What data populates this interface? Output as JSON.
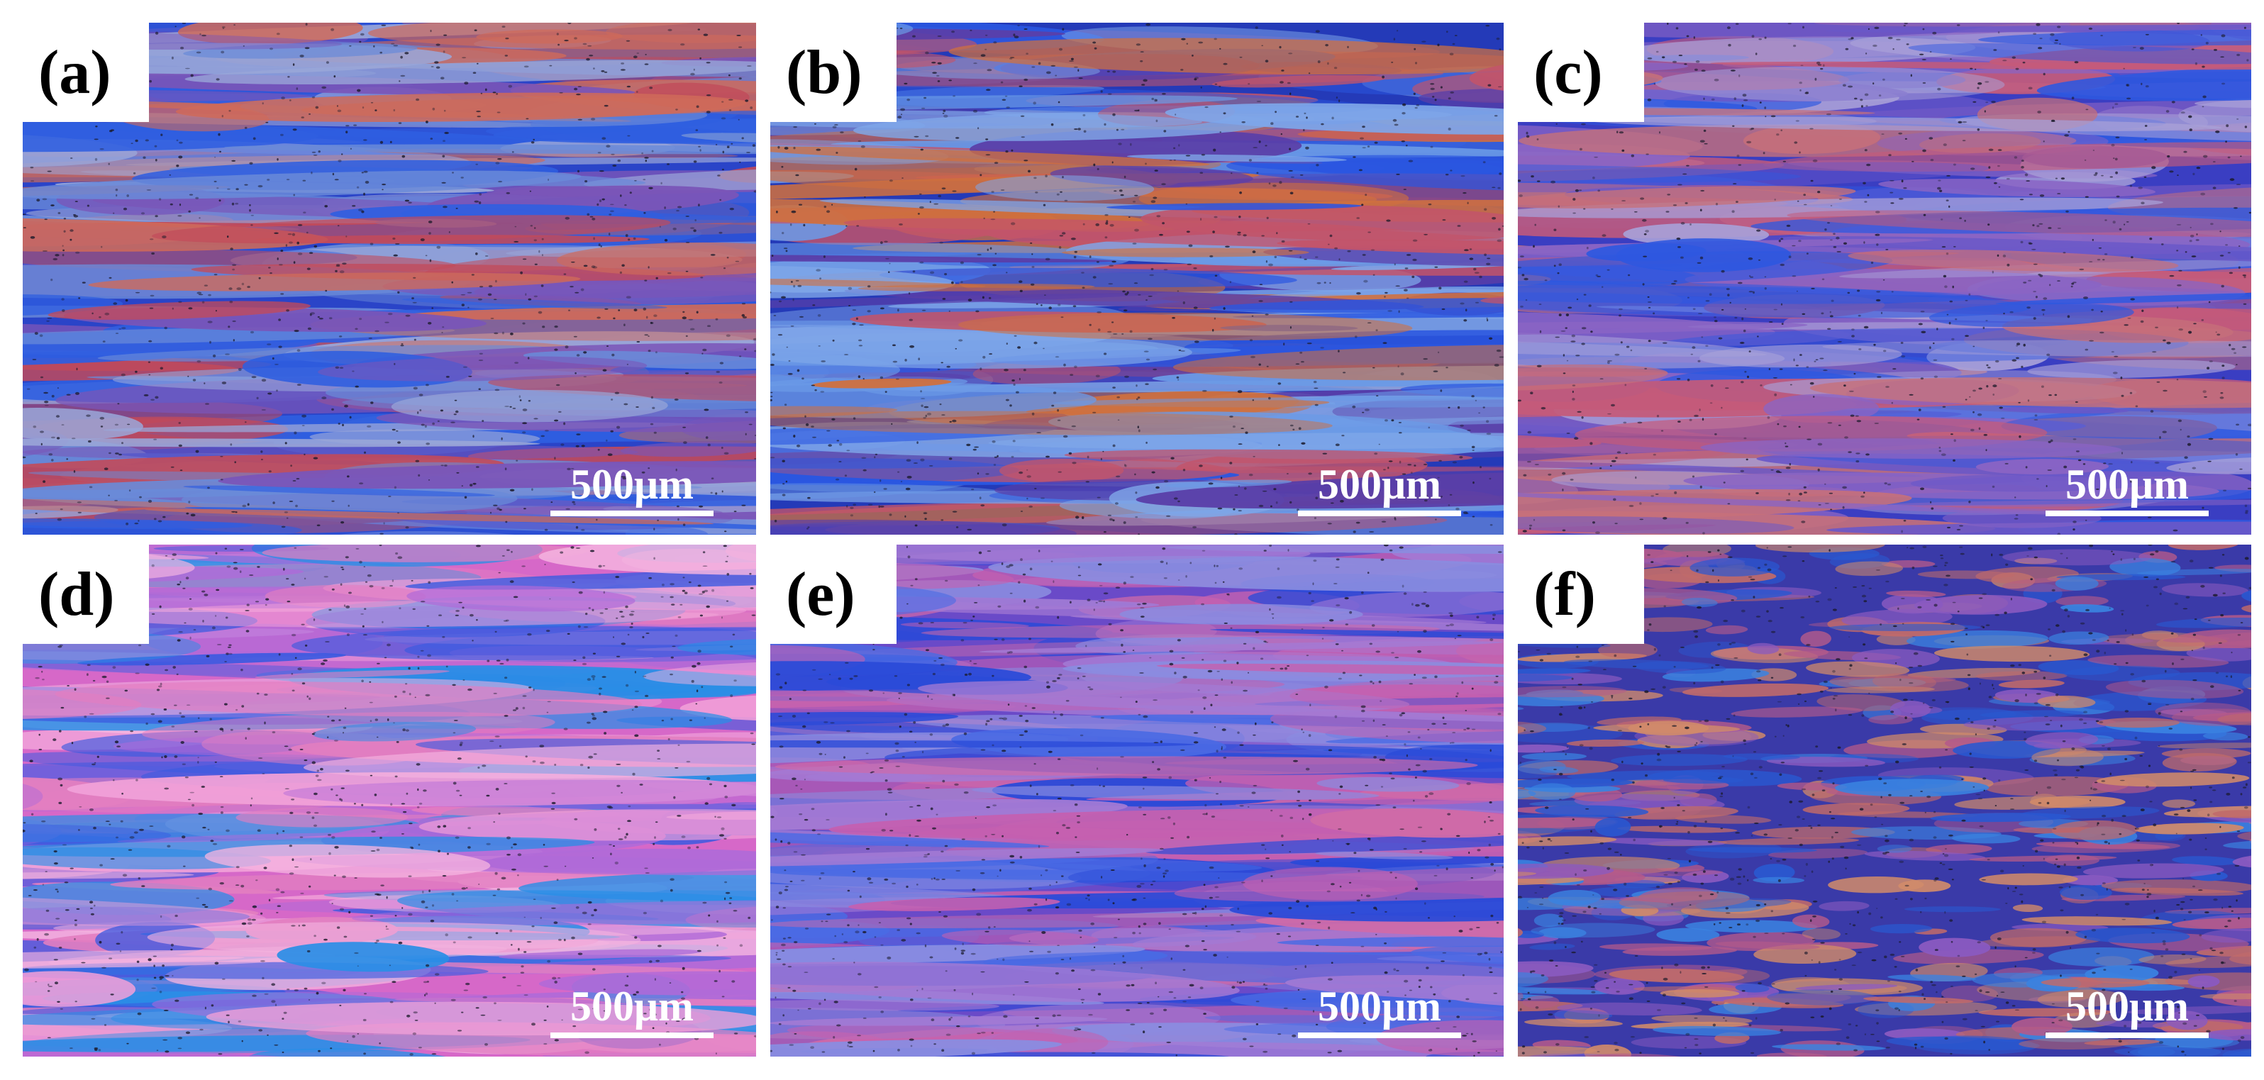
{
  "figure": {
    "panels": [
      {
        "label": "(a)",
        "scale_text": "500μm",
        "colors": {
          "base": "#2a44c8",
          "bands": [
            "#c24a5a",
            "#2f5ee0",
            "#6a8ad8",
            "#cf6a5a",
            "#7a55b8",
            "#9aa6d8"
          ]
        }
      },
      {
        "label": "(b)",
        "scale_text": "500μm",
        "colors": {
          "base": "#243ab8",
          "bands": [
            "#d0703e",
            "#2a56e0",
            "#7fa6e8",
            "#c2546a",
            "#5a3ea8",
            "#6b9ae6"
          ]
        }
      },
      {
        "label": "(c)",
        "scale_text": "500μm",
        "colors": {
          "base": "#3a3ec2",
          "bands": [
            "#c45a7a",
            "#6a58c8",
            "#2e58e0",
            "#a8a0d8",
            "#c6707a",
            "#8a64c4"
          ]
        }
      },
      {
        "label": "(d)",
        "scale_text": "500μm",
        "colors": {
          "base": "#d668c8",
          "bands": [
            "#2a8ee6",
            "#f0a0d8",
            "#3a5ae0",
            "#e27ec0",
            "#b06ad8",
            "#f4b4e0"
          ]
        }
      },
      {
        "label": "(e)",
        "scale_text": "500μm",
        "colors": {
          "base": "#6a4ac8",
          "bands": [
            "#c460b0",
            "#2a4ad8",
            "#8a8ce0",
            "#d06aa8",
            "#4a6ae4",
            "#a37ad4"
          ]
        }
      },
      {
        "label": "(f)",
        "scale_text": "500μm",
        "colors": {
          "base": "#3a3aa8",
          "bands": [
            "#c06a6a",
            "#3a82e0",
            "#8a5ac0",
            "#d08a6a",
            "#2a58d0",
            "#b45a8a"
          ]
        }
      }
    ]
  }
}
